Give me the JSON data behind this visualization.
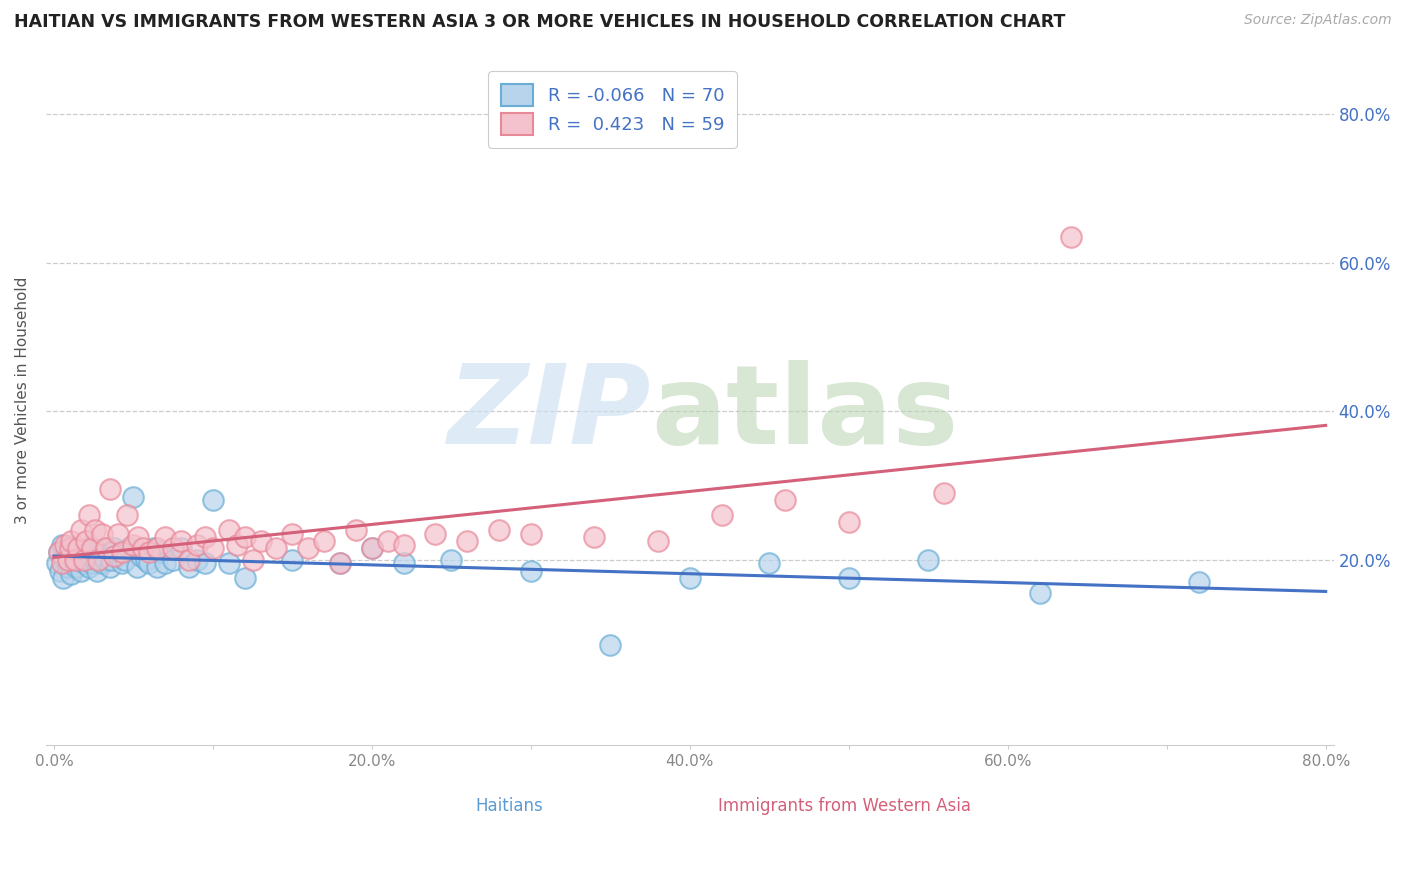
{
  "title": "HAITIAN VS IMMIGRANTS FROM WESTERN ASIA 3 OR MORE VEHICLES IN HOUSEHOLD CORRELATION CHART",
  "source_text": "Source: ZipAtlas.com",
  "ylabel": "3 or more Vehicles in Household",
  "xlabel_haitians": "Haitians",
  "xlabel_western_asia": "Immigrants from Western Asia",
  "xlim": [
    -0.005,
    0.805
  ],
  "ylim": [
    -0.05,
    0.88
  ],
  "xtick_labels": [
    "0.0%",
    "",
    "20.0%",
    "",
    "40.0%",
    "",
    "60.0%",
    "",
    "80.0%"
  ],
  "xtick_values": [
    0.0,
    0.1,
    0.2,
    0.3,
    0.4,
    0.5,
    0.6,
    0.7,
    0.8
  ],
  "ytick_labels": [
    "20.0%",
    "40.0%",
    "60.0%",
    "80.0%"
  ],
  "ytick_values": [
    0.2,
    0.4,
    0.6,
    0.8
  ],
  "r_haitian": -0.066,
  "n_haitian": 70,
  "r_western_asia": 0.423,
  "n_western_asia": 59,
  "legend_label_haitian": "Haitians",
  "legend_label_western_asia": "Immigrants from Western Asia",
  "color_haitian_fill": "#b8d4ec",
  "color_haitian_edge": "#6aaed6",
  "color_haitian_line": "#4472c4",
  "color_western_asia_fill": "#f4c2cc",
  "color_western_asia_edge": "#e8899a",
  "color_western_asia_line": "#d4607a",
  "watermark_zip": "ZIP",
  "watermark_atlas": "atlas",
  "background_color": "#ffffff",
  "haitian_x": [
    0.002,
    0.003,
    0.004,
    0.005,
    0.006,
    0.007,
    0.008,
    0.009,
    0.01,
    0.01,
    0.011,
    0.012,
    0.013,
    0.014,
    0.015,
    0.016,
    0.017,
    0.018,
    0.019,
    0.02,
    0.021,
    0.022,
    0.023,
    0.024,
    0.025,
    0.026,
    0.027,
    0.028,
    0.03,
    0.031,
    0.032,
    0.033,
    0.035,
    0.036,
    0.038,
    0.04,
    0.042,
    0.043,
    0.045,
    0.047,
    0.05,
    0.052,
    0.055,
    0.058,
    0.06,
    0.063,
    0.065,
    0.068,
    0.07,
    0.075,
    0.08,
    0.085,
    0.09,
    0.095,
    0.1,
    0.11,
    0.12,
    0.15,
    0.18,
    0.2,
    0.22,
    0.25,
    0.3,
    0.35,
    0.4,
    0.45,
    0.5,
    0.55,
    0.62,
    0.72
  ],
  "haitian_y": [
    0.195,
    0.21,
    0.185,
    0.22,
    0.175,
    0.2,
    0.215,
    0.19,
    0.205,
    0.195,
    0.18,
    0.2,
    0.215,
    0.19,
    0.21,
    0.2,
    0.185,
    0.21,
    0.195,
    0.2,
    0.215,
    0.19,
    0.205,
    0.195,
    0.215,
    0.2,
    0.185,
    0.21,
    0.195,
    0.205,
    0.2,
    0.215,
    0.19,
    0.2,
    0.215,
    0.205,
    0.21,
    0.195,
    0.2,
    0.215,
    0.285,
    0.19,
    0.205,
    0.2,
    0.195,
    0.215,
    0.19,
    0.21,
    0.195,
    0.2,
    0.215,
    0.19,
    0.2,
    0.195,
    0.28,
    0.195,
    0.175,
    0.2,
    0.195,
    0.215,
    0.195,
    0.2,
    0.185,
    0.085,
    0.175,
    0.195,
    0.175,
    0.2,
    0.155,
    0.17
  ],
  "western_asia_x": [
    0.003,
    0.005,
    0.007,
    0.009,
    0.01,
    0.011,
    0.013,
    0.015,
    0.017,
    0.019,
    0.02,
    0.022,
    0.024,
    0.026,
    0.028,
    0.03,
    0.033,
    0.035,
    0.038,
    0.04,
    0.043,
    0.046,
    0.05,
    0.053,
    0.056,
    0.06,
    0.065,
    0.07,
    0.075,
    0.08,
    0.085,
    0.09,
    0.095,
    0.1,
    0.11,
    0.115,
    0.12,
    0.125,
    0.13,
    0.14,
    0.15,
    0.16,
    0.17,
    0.18,
    0.19,
    0.2,
    0.21,
    0.22,
    0.24,
    0.26,
    0.28,
    0.3,
    0.34,
    0.38,
    0.42,
    0.46,
    0.5,
    0.56,
    0.64
  ],
  "western_asia_y": [
    0.21,
    0.195,
    0.22,
    0.2,
    0.215,
    0.225,
    0.2,
    0.215,
    0.24,
    0.2,
    0.225,
    0.26,
    0.215,
    0.24,
    0.2,
    0.235,
    0.215,
    0.295,
    0.205,
    0.235,
    0.21,
    0.26,
    0.22,
    0.23,
    0.215,
    0.21,
    0.215,
    0.23,
    0.215,
    0.225,
    0.2,
    0.22,
    0.23,
    0.215,
    0.24,
    0.22,
    0.23,
    0.2,
    0.225,
    0.215,
    0.235,
    0.215,
    0.225,
    0.195,
    0.24,
    0.215,
    0.225,
    0.22,
    0.235,
    0.225,
    0.24,
    0.235,
    0.23,
    0.225,
    0.26,
    0.28,
    0.25,
    0.29,
    0.635
  ]
}
